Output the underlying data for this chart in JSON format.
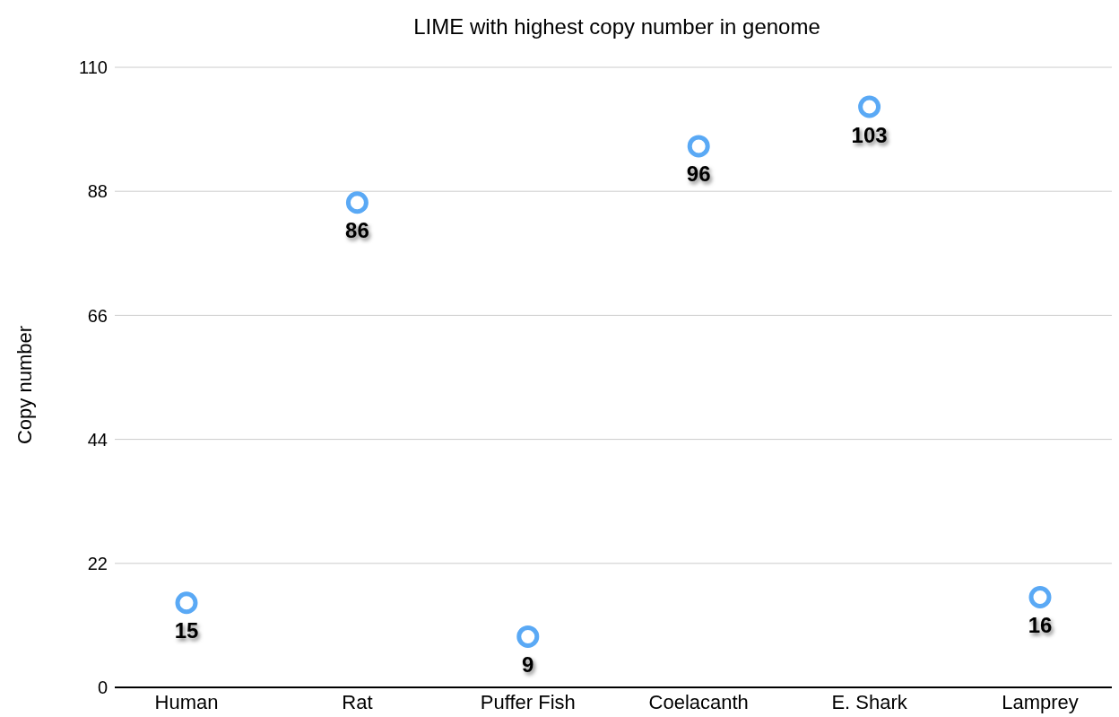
{
  "chart_data": {
    "type": "scatter",
    "title": "LIME with highest copy number in genome",
    "ylabel": "Copy number",
    "categories": [
      "Human",
      "Rat",
      "Puffer Fish",
      "Coelacanth",
      "E. Shark",
      "Lamprey"
    ],
    "values": [
      15,
      86,
      9,
      96,
      103,
      16
    ],
    "color": "#5aa9f5",
    "ylim": [
      0,
      110
    ],
    "yticks": [
      0,
      22,
      44,
      66,
      88,
      110
    ],
    "grid": "y",
    "marker": "circle",
    "data_labels": true
  }
}
